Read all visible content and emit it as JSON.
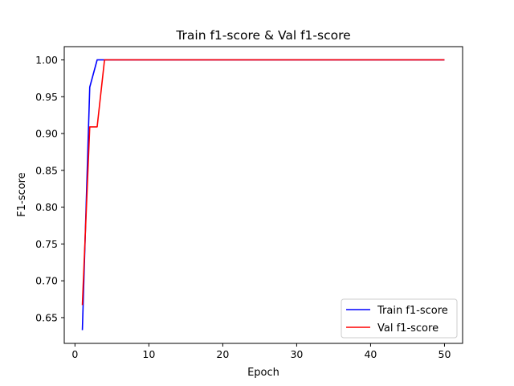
{
  "chart_data": {
    "type": "line",
    "title": "Train f1-score & Val f1-score",
    "xlabel": "Epoch",
    "ylabel": "F1-score",
    "xlim": [
      -1.45,
      52.45
    ],
    "ylim": [
      0.615,
      1.018
    ],
    "xticks": [
      0,
      10,
      20,
      30,
      40,
      50
    ],
    "yticks": [
      0.65,
      0.7,
      0.75,
      0.8,
      0.85,
      0.9,
      0.95,
      1.0
    ],
    "ytick_labels": [
      "0.65",
      "0.70",
      "0.75",
      "0.80",
      "0.85",
      "0.90",
      "0.95",
      "1.00"
    ],
    "grid": false,
    "legend_position": "lower-right",
    "series": [
      {
        "name": "Train f1-score",
        "color": "#0000ff",
        "x": [
          1,
          2,
          3,
          4,
          5,
          50
        ],
        "y": [
          0.633,
          0.963,
          1.0,
          1.0,
          1.0,
          1.0
        ]
      },
      {
        "name": "Val f1-score",
        "color": "#ff0000",
        "x": [
          1,
          2,
          3,
          4,
          5,
          50
        ],
        "y": [
          0.667,
          0.909,
          0.909,
          1.0,
          1.0,
          1.0
        ]
      }
    ]
  }
}
